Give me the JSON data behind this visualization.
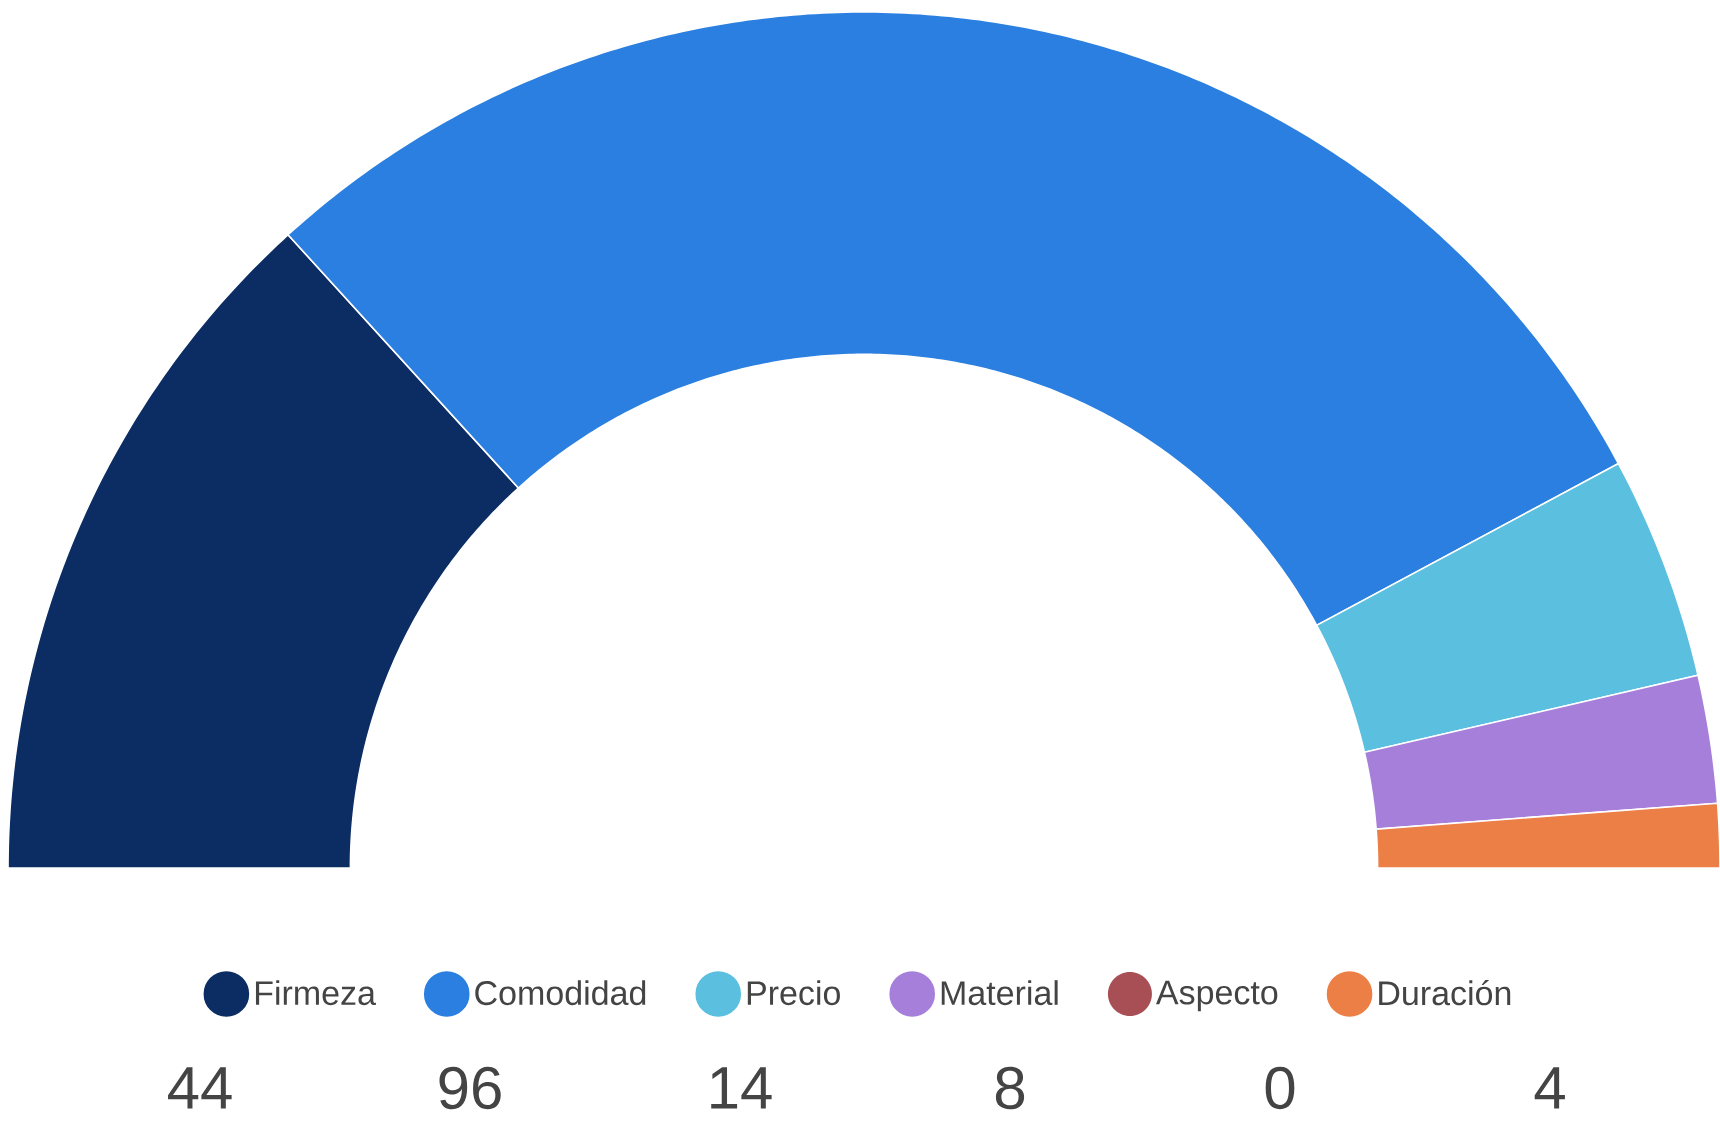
{
  "chart_data": {
    "type": "donut",
    "categories": [
      "Firmeza",
      "Comodidad",
      "Precio",
      "Material",
      "Aspecto",
      "Duración"
    ],
    "values": [
      44,
      96,
      14,
      8,
      0,
      4
    ],
    "colors": [
      "#0b2d63",
      "#2a7fe0",
      "#5bc0e0",
      "#a67fdb",
      "#a84f55",
      "#ec7f45"
    ],
    "value_labels": [
      "44",
      "96",
      "14",
      "8",
      "0",
      "4"
    ],
    "legend": "bottom"
  }
}
